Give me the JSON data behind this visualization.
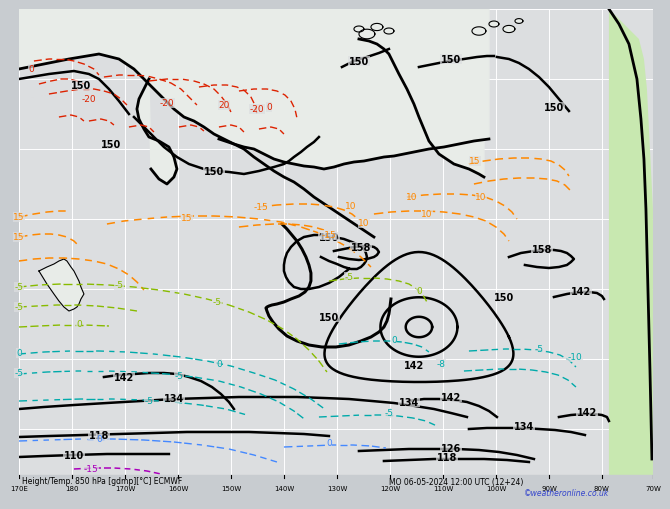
{
  "title": "Height/Temp. 850 hPa [gdmp][°C] ECMWF",
  "subtitle": "MO 06-05-2024 12:00 UTC (12+24)",
  "copyright": "©weatheronline.co.uk",
  "bg_color": "#c8ccd0",
  "map_bg": "#dcdee0",
  "grid_color": "#ffffff",
  "land_color_light": "#e8ece8",
  "land_color_green": "#c8e8b0",
  "contour_black": "#000000",
  "contour_red": "#dd2200",
  "contour_orange": "#ff8800",
  "contour_ygreen": "#88bb00",
  "contour_green": "#00cc44",
  "contour_cyan": "#00aaaa",
  "contour_blue": "#4488ff",
  "contour_purple": "#aa00bb",
  "contour_pink": "#ff44aa",
  "xlim": [
    0,
    634
  ],
  "ylim": [
    490,
    0
  ],
  "lon_labels": [
    "170E",
    "180",
    "170W",
    "160W",
    "150W",
    "140W",
    "130W",
    "120W",
    "110W",
    "100W",
    "90W",
    "80W",
    "70W"
  ],
  "lon_positions": [
    0,
    53,
    106,
    159,
    212,
    265,
    318,
    371,
    424,
    477,
    530,
    583,
    634
  ],
  "bottom_label": "Height/Temp. 850 hPa [gdmp][°C] ECMWF",
  "bottom_right": "MO 06-05-2024 12:00 UTC (12+24)"
}
